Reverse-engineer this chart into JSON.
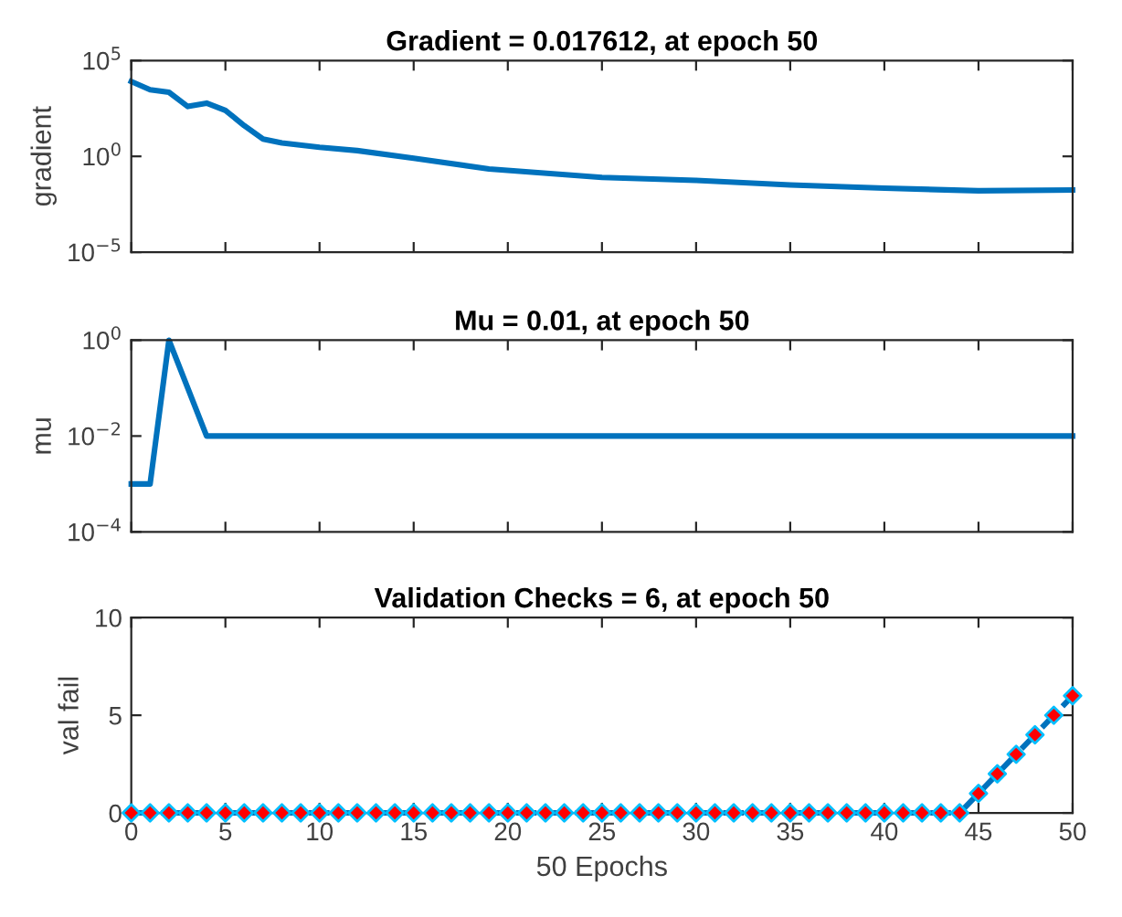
{
  "chart_data": [
    {
      "type": "line",
      "title": "Gradient = 0.017612, at epoch 50",
      "ylabel": "gradient",
      "log": "y",
      "x": [
        0,
        1,
        2,
        3,
        4,
        5,
        6,
        7,
        8,
        10,
        12,
        15,
        19,
        25,
        30,
        35,
        40,
        45,
        50
      ],
      "series": [
        {
          "color": "#0072bd",
          "values": [
            8000,
            3000,
            2200,
            400,
            600,
            250,
            40,
            8,
            5,
            3,
            2,
            0.8,
            0.22,
            0.08,
            0.056,
            0.032,
            0.022,
            0.016,
            0.017612
          ]
        }
      ],
      "xlim": [
        0,
        50
      ],
      "xticks": [
        {
          "value": 0,
          "label": null
        },
        {
          "value": 5,
          "label": null
        },
        {
          "value": 10,
          "label": null
        },
        {
          "value": 15,
          "label": null
        },
        {
          "value": 20,
          "label": null
        },
        {
          "value": 25,
          "label": null
        },
        {
          "value": 30,
          "label": null
        },
        {
          "value": 35,
          "label": null
        },
        {
          "value": 40,
          "label": null
        },
        {
          "value": 45,
          "label": null
        },
        {
          "value": 50,
          "label": null
        }
      ],
      "ylim": [
        1e-05,
        100000
      ],
      "yticks": [
        {
          "value": 1e-05,
          "label": "10$^{−5}$"
        },
        {
          "value": 1,
          "label": "10$^{0}$"
        },
        {
          "value": 100000,
          "label": "10$^{5}$"
        }
      ],
      "tick_labels": "y",
      "grid": false,
      "marker": "none",
      "line_style": "solid"
    },
    {
      "type": "line",
      "title": "Mu = 0.01, at epoch 50",
      "ylabel": "mu",
      "log": "y",
      "x": [
        0,
        1,
        2,
        3,
        4,
        50
      ],
      "series": [
        {
          "color": "#0072bd",
          "values": [
            0.001,
            0.001,
            1,
            0.1,
            0.01,
            0.01
          ]
        }
      ],
      "xlim": [
        0,
        50
      ],
      "xticks": [
        {
          "value": 0,
          "label": null
        },
        {
          "value": 5,
          "label": null
        },
        {
          "value": 10,
          "label": null
        },
        {
          "value": 15,
          "label": null
        },
        {
          "value": 20,
          "label": null
        },
        {
          "value": 25,
          "label": null
        },
        {
          "value": 30,
          "label": null
        },
        {
          "value": 35,
          "label": null
        },
        {
          "value": 40,
          "label": null
        },
        {
          "value": 45,
          "label": null
        },
        {
          "value": 50,
          "label": null
        }
      ],
      "ylim": [
        0.0001,
        1
      ],
      "yticks": [
        {
          "value": 0.0001,
          "label": "10$^{−4}$"
        },
        {
          "value": 0.01,
          "label": "10$^{−2}$"
        },
        {
          "value": 1,
          "label": "10$^{0}$"
        }
      ],
      "tick_labels": "y",
      "grid": false,
      "marker": "none",
      "line_style": "solid"
    },
    {
      "type": "line",
      "title": "Validation Checks = 6, at epoch 50",
      "ylabel": "val fail",
      "xlabel": "50 Epochs",
      "x": [
        0,
        1,
        2,
        3,
        4,
        5,
        6,
        7,
        8,
        9,
        10,
        11,
        12,
        13,
        14,
        15,
        16,
        17,
        18,
        19,
        20,
        21,
        22,
        23,
        24,
        25,
        26,
        27,
        28,
        29,
        30,
        31,
        32,
        33,
        34,
        35,
        36,
        37,
        38,
        39,
        40,
        41,
        42,
        43,
        44,
        45,
        46,
        47,
        48,
        49,
        50
      ],
      "series": [
        {
          "color": "#0072bd",
          "colors": [
            "#ff0000",
            "#ff0000",
            "#ff0000",
            "#ff0000",
            "#ff0000",
            "#ff0000",
            "#ff0000",
            "#ff0000",
            "#ff0000",
            "#ff0000",
            "#ff0000",
            "#ff0000",
            "#ff0000",
            "#ff0000",
            "#ff0000",
            "#ff0000",
            "#ff0000",
            "#ff0000",
            "#ff0000",
            "#ff0000",
            "#ff0000",
            "#ff0000",
            "#ff0000",
            "#ff0000",
            "#ff0000",
            "#ff0000",
            "#ff0000",
            "#ff0000",
            "#ff0000",
            "#ff0000",
            "#ff0000",
            "#ff0000",
            "#ff0000",
            "#ff0000",
            "#ff0000",
            "#ff0000",
            "#ff0000",
            "#ff0000",
            "#ff0000",
            "#ff0000",
            "#ff0000",
            "#ff0000",
            "#ff0000",
            "#ff0000",
            "#ff0000",
            "#ff0000",
            "#ff0000",
            "#ff0000",
            "#ff0000",
            "#ff0000",
            "#ff0000"
          ],
          "values": [
            0,
            0,
            0,
            0,
            0,
            0,
            0,
            0,
            0,
            0,
            0,
            0,
            0,
            0,
            0,
            0,
            0,
            0,
            0,
            0,
            0,
            0,
            0,
            0,
            0,
            0,
            0,
            0,
            0,
            0,
            0,
            0,
            0,
            0,
            0,
            0,
            0,
            0,
            0,
            0,
            0,
            0,
            0,
            0,
            0,
            1,
            2,
            3,
            4,
            5,
            6
          ]
        }
      ],
      "xlim": [
        0,
        50
      ],
      "xticks": [
        0,
        5,
        10,
        15,
        20,
        25,
        30,
        35,
        40,
        45,
        50
      ],
      "ylim": [
        0,
        10
      ],
      "yticks": [
        0,
        5,
        10
      ],
      "grid": false,
      "marker": "diamond",
      "line_style": "dashed"
    }
  ]
}
